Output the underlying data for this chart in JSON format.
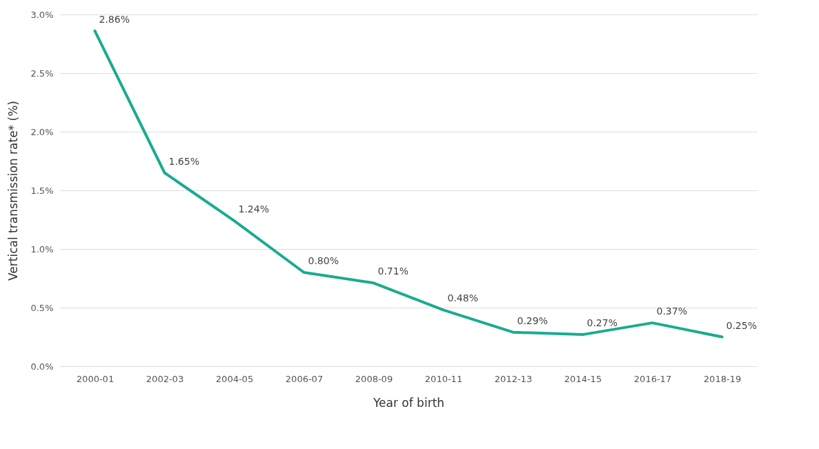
{
  "chart_data": {
    "type": "line",
    "xlabel": "Year of birth",
    "ylabel": "Vertical transmission rate* (%)",
    "categories": [
      "2000-01",
      "2002-03",
      "2004-05",
      "2006-07",
      "2008-09",
      "2010-11",
      "2012-13",
      "2014-15",
      "2016-17",
      "2018-19"
    ],
    "series": [
      {
        "color": "#1aab8f",
        "values": [
          2.86,
          1.65,
          1.24,
          0.8,
          0.71,
          0.48,
          0.29,
          0.27,
          0.37,
          0.25
        ],
        "value_labels": [
          "2.86%",
          "1.65%",
          "1.24%",
          "0.80%",
          "0.71%",
          "0.48%",
          "0.29%",
          "0.27%",
          "0.37%",
          "0.25%"
        ]
      }
    ],
    "ylim": [
      0,
      3.0
    ],
    "yticks": [
      {
        "value": 0,
        "label": "0.0%"
      },
      {
        "value": 0.5,
        "label": "0.5%"
      },
      {
        "value": 1.0,
        "label": "1.0%"
      },
      {
        "value": 1.5,
        "label": "1.5%"
      },
      {
        "value": 2.0,
        "label": "2.0%"
      },
      {
        "value": 2.5,
        "label": "2.5%"
      },
      {
        "value": 3.0,
        "label": "3.0%"
      }
    ],
    "grid": "y",
    "marker": "none",
    "line_style": "solid"
  }
}
